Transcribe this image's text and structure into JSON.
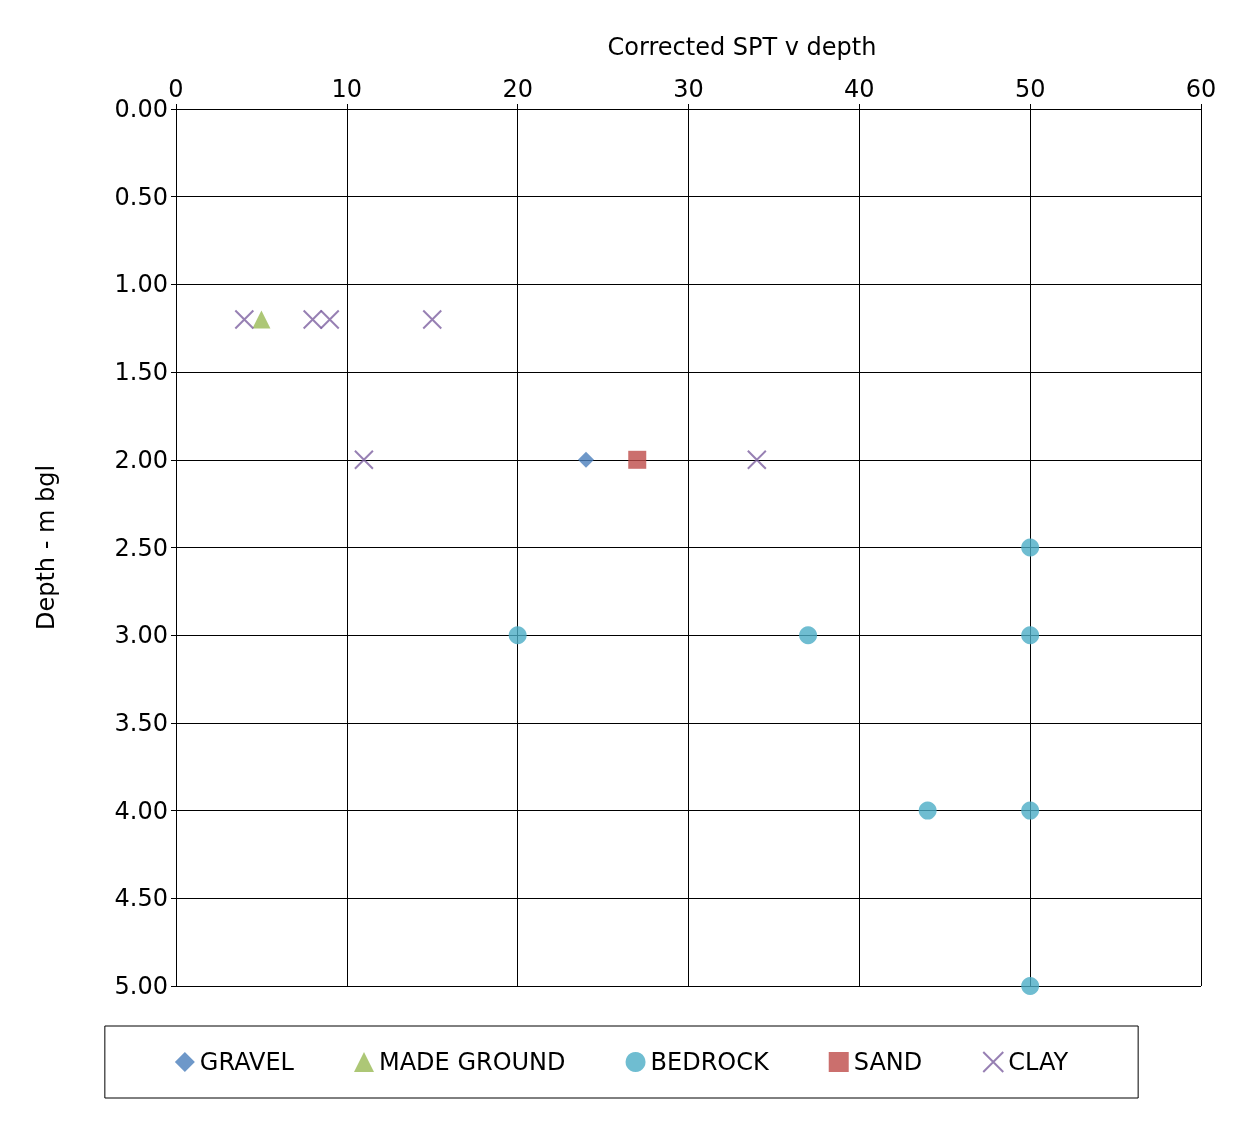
{
  "chart_data": {
    "type": "scatter",
    "title": "Corrected SPT v depth",
    "ylabel": "Depth - m bgl",
    "xlim": [
      0,
      60
    ],
    "xticks": [
      0,
      10,
      20,
      30,
      40,
      50,
      60
    ],
    "ylim": [
      5,
      0
    ],
    "yticks": [
      {
        "value": 0,
        "label": "0.00"
      },
      {
        "value": 0.5,
        "label": "0.50"
      },
      {
        "value": 1,
        "label": "1.00"
      },
      {
        "value": 1.5,
        "label": "1.50"
      },
      {
        "value": 2,
        "label": "2.00"
      },
      {
        "value": 2.5,
        "label": "2.50"
      },
      {
        "value": 3,
        "label": "3.00"
      },
      {
        "value": 3.5,
        "label": "3.50"
      },
      {
        "value": 4,
        "label": "4.00"
      },
      {
        "value": 4.5,
        "label": "4.50"
      },
      {
        "value": 5,
        "label": "5.00"
      }
    ],
    "grid": true,
    "legend": "bottom",
    "series": [
      {
        "name": "GRAVEL",
        "color": "#4a7ebb",
        "marker": "diamond",
        "x": [
          24
        ],
        "values": [
          2
        ]
      },
      {
        "name": "MADE GROUND",
        "color": "#98b954",
        "marker": "triangle",
        "x": [
          5
        ],
        "values": [
          1.2
        ]
      },
      {
        "name": "BEDROCK",
        "color": "#4bacc6",
        "marker": "circle",
        "x": [
          50,
          20,
          37,
          50,
          44,
          50,
          50
        ],
        "values": [
          2.5,
          3,
          3,
          3,
          4,
          4,
          5
        ]
      },
      {
        "name": "SAND",
        "color": "#be4b48",
        "marker": "square",
        "x": [
          27
        ],
        "values": [
          2
        ]
      },
      {
        "name": "CLAY",
        "color": "#7d60a0",
        "marker": "cross",
        "x": [
          4,
          8,
          9,
          15,
          11,
          34
        ],
        "values": [
          1.2,
          1.2,
          1.2,
          1.2,
          2,
          2
        ]
      }
    ]
  }
}
